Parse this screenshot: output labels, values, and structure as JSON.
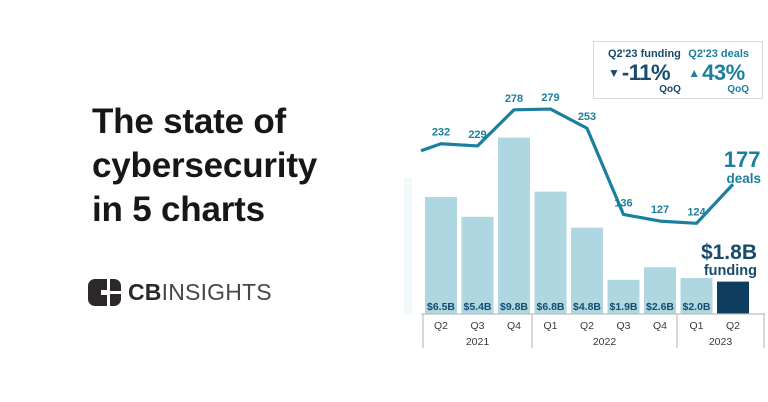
{
  "left_panel": {
    "title_lines": [
      "The state of",
      "cybersecurity",
      "in 5 charts"
    ],
    "logo": {
      "text_bold": "CB",
      "text_light": "INSIGHTS"
    }
  },
  "stat_box": {
    "funding": {
      "label": "Q2'23 funding",
      "arrow": "▼",
      "value": "-11%",
      "suffix": "QoQ"
    },
    "deals": {
      "label": "Q2'23 deals",
      "arrow": "▲",
      "value": "43%",
      "suffix": "QoQ"
    }
  },
  "chart_data": {
    "type": "bar+line combo",
    "categories": [
      "Q2",
      "Q3",
      "Q4",
      "Q1",
      "Q2",
      "Q3",
      "Q4",
      "Q1",
      "Q2"
    ],
    "year_groups": [
      {
        "label": "2021",
        "span": 3
      },
      {
        "label": "2022",
        "span": 4
      },
      {
        "label": "2023",
        "span": 2
      }
    ],
    "series": [
      {
        "name": "funding",
        "type": "bar",
        "unit": "$B",
        "values": [
          6.5,
          5.4,
          9.8,
          6.8,
          4.8,
          1.9,
          2.6,
          2.0,
          1.8
        ],
        "labels": [
          "$6.5B",
          "$5.4B",
          "$9.8B",
          "$6.8B",
          "$4.8B",
          "$1.9B",
          "$2.6B",
          "$2.0B",
          ""
        ],
        "highlight_index": 8,
        "highlight_label": "$1.8B",
        "highlight_sublabel": "funding"
      },
      {
        "name": "deals",
        "type": "line",
        "values": [
          232,
          229,
          278,
          279,
          253,
          136,
          127,
          124,
          177
        ],
        "labels": [
          "232",
          "229",
          "278",
          "279",
          "253",
          "136",
          "127",
          "124",
          ""
        ],
        "highlight_index": 8,
        "highlight_label": "177",
        "highlight_sublabel": "deals"
      }
    ],
    "ylim_bar_billions": [
      0,
      10.8
    ],
    "ylim_line_deals": [
      0,
      345
    ],
    "grid": "off",
    "legend": "none",
    "colors": {
      "bar": "#aed7e2",
      "bar_highlight": "#0e3d5f",
      "line": "#1b7f9e",
      "bar_label": "#174a6d",
      "navy_text": "#174a6d",
      "teal_text": "#1b7f9e",
      "axis": "#bdbdbd",
      "tick_text": "#3a3a3a"
    }
  }
}
